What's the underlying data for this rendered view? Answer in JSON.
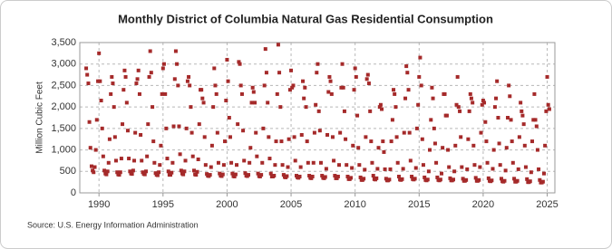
{
  "chart_data": {
    "type": "scatter",
    "title": "Monthly District of Columbia Natural Gas Residential Consumption",
    "y_label": "Million Cubic Feet",
    "source": "Source: U.S. Energy Information Administration",
    "color": "#a52a2a",
    "grid": true,
    "xlim": [
      1988.5,
      2025.6
    ],
    "xticks": [
      1990,
      1995,
      2000,
      2005,
      2010,
      2015,
      2020,
      2025
    ],
    "ylim": [
      0,
      3500
    ],
    "yticks": [
      0,
      500,
      {
        "value": 1000,
        "label": "1,000"
      },
      {
        "value": 1500,
        "label": "1,500"
      },
      {
        "value": 2000,
        "label": "2,000"
      },
      {
        "value": 2500,
        "label": "2,500"
      },
      {
        "value": 3000,
        "label": "3,000"
      },
      {
        "value": 3500,
        "label": "3,500"
      }
    ],
    "x": [
      1989,
      1989.08,
      1989.17,
      1989.25,
      1989.33,
      1989.42,
      1989.5,
      1989.58,
      1989.67,
      1989.75,
      1989.83,
      1989.92,
      1990,
      1990.08,
      1990.17,
      1990.25,
      1990.33,
      1990.42,
      1990.5,
      1990.58,
      1990.67,
      1990.75,
      1990.83,
      1990.92,
      1991,
      1991.08,
      1991.17,
      1991.25,
      1991.33,
      1991.42,
      1991.5,
      1991.58,
      1991.67,
      1991.75,
      1991.83,
      1991.92,
      1992,
      1992.08,
      1992.17,
      1992.25,
      1992.33,
      1992.42,
      1992.5,
      1992.58,
      1992.67,
      1992.75,
      1992.83,
      1992.92,
      1993,
      1993.08,
      1993.17,
      1993.25,
      1993.33,
      1993.42,
      1993.5,
      1993.58,
      1993.67,
      1993.75,
      1993.83,
      1993.92,
      1994,
      1994.08,
      1994.17,
      1994.25,
      1994.33,
      1994.42,
      1994.5,
      1994.58,
      1994.67,
      1994.75,
      1994.83,
      1994.92,
      1995,
      1995.08,
      1995.17,
      1995.25,
      1995.33,
      1995.42,
      1995.5,
      1995.58,
      1995.67,
      1995.75,
      1995.83,
      1995.92,
      1996,
      1996.08,
      1996.17,
      1996.25,
      1996.33,
      1996.42,
      1996.5,
      1996.58,
      1996.67,
      1996.75,
      1996.83,
      1996.92,
      1997,
      1997.08,
      1997.17,
      1997.25,
      1997.33,
      1997.42,
      1997.5,
      1997.58,
      1997.67,
      1997.75,
      1997.83,
      1997.92,
      1998,
      1998.08,
      1998.17,
      1998.25,
      1998.33,
      1998.42,
      1998.5,
      1998.58,
      1998.67,
      1998.75,
      1998.83,
      1998.92,
      1999,
      1999.08,
      1999.17,
      1999.25,
      1999.33,
      1999.42,
      1999.5,
      1999.58,
      1999.67,
      1999.75,
      1999.83,
      1999.92,
      2000,
      2000.08,
      2000.17,
      2000.25,
      2000.33,
      2000.42,
      2000.5,
      2000.58,
      2000.67,
      2000.75,
      2000.83,
      2000.92,
      2001,
      2001.08,
      2001.17,
      2001.25,
      2001.33,
      2001.42,
      2001.5,
      2001.58,
      2001.67,
      2001.75,
      2001.83,
      2001.92,
      2002,
      2002.08,
      2002.17,
      2002.25,
      2002.33,
      2002.42,
      2002.5,
      2002.58,
      2002.67,
      2002.75,
      2002.83,
      2002.92,
      2003,
      2003.08,
      2003.17,
      2003.25,
      2003.33,
      2003.42,
      2003.5,
      2003.58,
      2003.67,
      2003.75,
      2003.83,
      2003.92,
      2004,
      2004.08,
      2004.17,
      2004.25,
      2004.33,
      2004.42,
      2004.5,
      2004.58,
      2004.67,
      2004.75,
      2004.83,
      2004.92,
      2005,
      2005.08,
      2005.17,
      2005.25,
      2005.33,
      2005.42,
      2005.5,
      2005.58,
      2005.67,
      2005.75,
      2005.83,
      2005.92,
      2006,
      2006.08,
      2006.17,
      2006.25,
      2006.33,
      2006.42,
      2006.5,
      2006.58,
      2006.67,
      2006.75,
      2006.83,
      2006.92,
      2007,
      2007.08,
      2007.17,
      2007.25,
      2007.33,
      2007.42,
      2007.5,
      2007.58,
      2007.67,
      2007.75,
      2007.83,
      2007.92,
      2008,
      2008.08,
      2008.17,
      2008.25,
      2008.33,
      2008.42,
      2008.5,
      2008.58,
      2008.67,
      2008.75,
      2008.83,
      2008.92,
      2009,
      2009.08,
      2009.17,
      2009.25,
      2009.33,
      2009.42,
      2009.5,
      2009.58,
      2009.67,
      2009.75,
      2009.83,
      2009.92,
      2010,
      2010.08,
      2010.17,
      2010.25,
      2010.33,
      2010.42,
      2010.5,
      2010.58,
      2010.67,
      2010.75,
      2010.83,
      2010.92,
      2011,
      2011.08,
      2011.17,
      2011.25,
      2011.33,
      2011.42,
      2011.5,
      2011.58,
      2011.67,
      2011.75,
      2011.83,
      2011.92,
      2012,
      2012.08,
      2012.17,
      2012.25,
      2012.33,
      2012.42,
      2012.5,
      2012.58,
      2012.67,
      2012.75,
      2012.83,
      2012.92,
      2013,
      2013.08,
      2013.17,
      2013.25,
      2013.33,
      2013.42,
      2013.5,
      2013.58,
      2013.67,
      2013.75,
      2013.83,
      2013.92,
      2014,
      2014.08,
      2014.17,
      2014.25,
      2014.33,
      2014.42,
      2014.5,
      2014.58,
      2014.67,
      2014.75,
      2014.83,
      2014.92,
      2015,
      2015.08,
      2015.17,
      2015.25,
      2015.33,
      2015.42,
      2015.5,
      2015.58,
      2015.67,
      2015.75,
      2015.83,
      2015.92,
      2016,
      2016.08,
      2016.17,
      2016.25,
      2016.33,
      2016.42,
      2016.5,
      2016.58,
      2016.67,
      2016.75,
      2016.83,
      2016.92,
      2017,
      2017.08,
      2017.17,
      2017.25,
      2017.33,
      2017.42,
      2017.5,
      2017.58,
      2017.67,
      2017.75,
      2017.83,
      2017.92,
      2018,
      2018.08,
      2018.17,
      2018.25,
      2018.33,
      2018.42,
      2018.5,
      2018.58,
      2018.67,
      2018.75,
      2018.83,
      2018.92,
      2019,
      2019.08,
      2019.17,
      2019.25,
      2019.33,
      2019.42,
      2019.5,
      2019.58,
      2019.67,
      2019.75,
      2019.83,
      2019.92,
      2020,
      2020.08,
      2020.17,
      2020.25,
      2020.33,
      2020.42,
      2020.5,
      2020.58,
      2020.67,
      2020.75,
      2020.83,
      2020.92,
      2021,
      2021.08,
      2021.17,
      2021.25,
      2021.33,
      2021.42,
      2021.5,
      2021.58,
      2021.67,
      2021.75,
      2021.83,
      2021.92,
      2022,
      2022.08,
      2022.17,
      2022.25,
      2022.33,
      2022.42,
      2022.5,
      2022.58,
      2022.67,
      2022.75,
      2022.83,
      2022.92,
      2023,
      2023.08,
      2023.17,
      2023.25,
      2023.33,
      2023.42,
      2023.5,
      2023.58,
      2023.67,
      2023.75,
      2023.83,
      2023.92,
      2024,
      2024.08,
      2024.17,
      2024.25,
      2024.33,
      2024.42,
      2024.5,
      2024.58,
      2024.67,
      2024.75,
      2024.83,
      2024.92,
      2025,
      2025.08,
      2025.17
    ],
    "values": [
      2900,
      2750,
      2550,
      1650,
      1050,
      620,
      520,
      480,
      600,
      1000,
      1700,
      2600,
      3250,
      2600,
      2150,
      1500,
      850,
      520,
      450,
      430,
      500,
      700,
      1250,
      2300,
      2700,
      2550,
      2000,
      1300,
      750,
      480,
      430,
      420,
      480,
      800,
      1600,
      2400,
      2850,
      2700,
      2100,
      1450,
      800,
      500,
      450,
      440,
      520,
      750,
      1400,
      2550,
      2650,
      2850,
      2300,
      1350,
      750,
      480,
      440,
      430,
      500,
      850,
      1600,
      2700,
      3300,
      2800,
      2000,
      1200,
      700,
      460,
      420,
      410,
      480,
      650,
      1100,
      2300,
      2900,
      3000,
      2300,
      1500,
      800,
      500,
      420,
      420,
      470,
      700,
      1550,
      2650,
      3300,
      3000,
      2500,
      1550,
      900,
      520,
      450,
      430,
      500,
      750,
      1500,
      2600,
      2700,
      2500,
      2000,
      1400,
      850,
      520,
      430,
      420,
      490,
      780,
      1600,
      2400,
      2400,
      2200,
      2100,
      1300,
      650,
      440,
      400,
      390,
      420,
      600,
      1100,
      2000,
      2900,
      2500,
      2300,
      1400,
      700,
      450,
      400,
      390,
      430,
      650,
      1200,
      2150,
      3100,
      2600,
      1750,
      1300,
      700,
      450,
      390,
      380,
      430,
      650,
      1600,
      3050,
      3000,
      2500,
      2300,
      1450,
      750,
      460,
      400,
      390,
      420,
      700,
      1050,
      2100,
      2450,
      2350,
      2100,
      1400,
      850,
      450,
      390,
      380,
      420,
      700,
      1500,
      2500,
      3350,
      2800,
      2100,
      1300,
      800,
      450,
      380,
      380,
      400,
      650,
      1200,
      2300,
      3450,
      2800,
      2000,
      1200,
      650,
      420,
      370,
      360,
      390,
      600,
      1250,
      2400,
      2850,
      2450,
      2500,
      1300,
      750,
      400,
      360,
      350,
      380,
      600,
      1350,
      2600,
      2200,
      2450,
      2000,
      1200,
      700,
      400,
      350,
      340,
      380,
      700,
      1400,
      2050,
      2800,
      3000,
      1900,
      1450,
      700,
      400,
      350,
      340,
      370,
      560,
      1350,
      2350,
      2700,
      2600,
      2300,
      1300,
      750,
      400,
      340,
      340,
      380,
      650,
      1400,
      2450,
      3000,
      2450,
      1900,
      1250,
      650,
      380,
      320,
      320,
      350,
      580,
      1100,
      2400,
      2900,
      2700,
      1800,
      1050,
      650,
      360,
      300,
      300,
      330,
      540,
      1300,
      2650,
      2750,
      2550,
      1900,
      1200,
      700,
      400,
      320,
      310,
      340,
      560,
      1050,
      2000,
      2050,
      1950,
      1200,
      950,
      550,
      330,
      290,
      290,
      310,
      550,
      1200,
      1700,
      2400,
      2300,
      2000,
      1300,
      700,
      380,
      310,
      300,
      320,
      560,
      1400,
      2200,
      2950,
      2800,
      2400,
      1400,
      750,
      380,
      320,
      310,
      330,
      580,
      1500,
      2050,
      2700,
      3150,
      2500,
      1250,
      650,
      360,
      300,
      290,
      310,
      500,
      1000,
      1700,
      2450,
      2200,
      1500,
      1150,
      700,
      360,
      300,
      290,
      310,
      450,
      1050,
      2300,
      2300,
      1800,
      1800,
      1000,
      600,
      340,
      290,
      290,
      310,
      500,
      1100,
      2050,
      2700,
      2000,
      1900,
      1300,
      600,
      330,
      280,
      280,
      300,
      550,
      1250,
      1900,
      2300,
      2200,
      2100,
      1100,
      650,
      350,
      280,
      280,
      300,
      600,
      1400,
      2050,
      2150,
      2100,
      1650,
      1200,
      700,
      340,
      280,
      270,
      290,
      560,
      1000,
      2000,
      2200,
      2600,
      1750,
      1150,
      650,
      330,
      270,
      260,
      280,
      520,
      1050,
      1750,
      2500,
      2250,
      1700,
      1200,
      700,
      330,
      260,
      260,
      280,
      550,
      1300,
      2100,
      1900,
      1800,
      1600,
      1100,
      600,
      320,
      250,
      250,
      270,
      480,
      1200,
      1700,
      2300,
      1700,
      1550,
      1000,
      550,
      300,
      240,
      240,
      260,
      450,
      1100,
      1900,
      2700,
      2050,
      1950
    ]
  }
}
